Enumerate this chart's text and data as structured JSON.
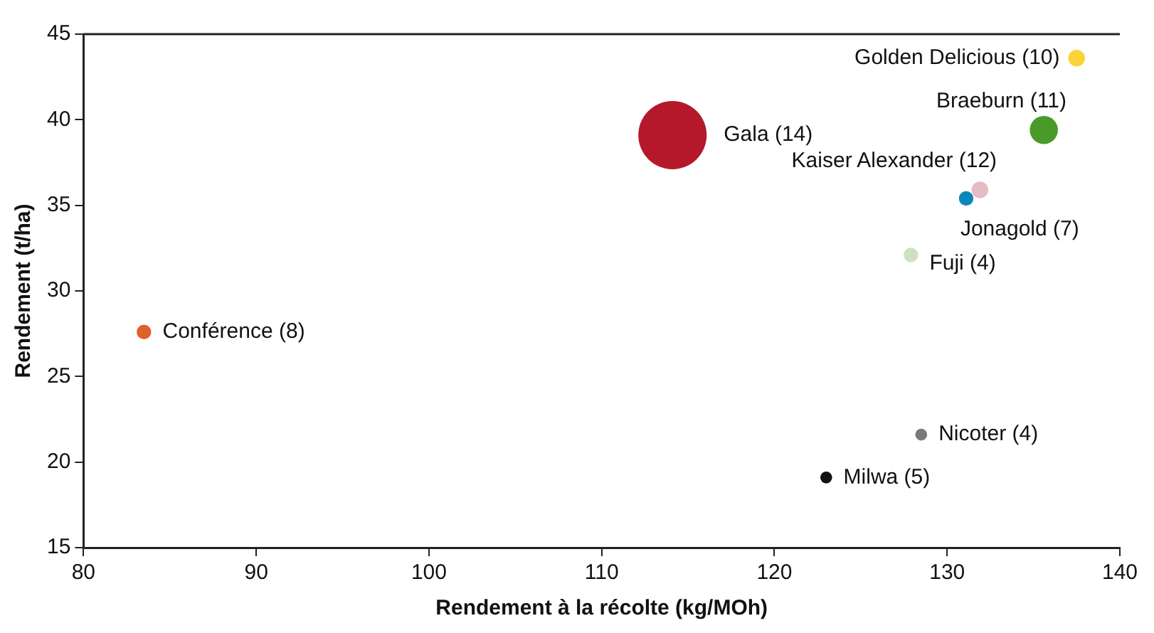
{
  "chart_data": {
    "type": "bubble",
    "xlabel": "Rendement à la récolte (kg/MOh)",
    "ylabel": "Rendement (t/ha)",
    "xlim": [
      80,
      140
    ],
    "xticks": [
      80,
      90,
      100,
      110,
      120,
      130,
      140
    ],
    "ylim": [
      15,
      45
    ],
    "yticks": [
      15,
      20,
      25,
      30,
      35,
      40,
      45
    ],
    "grid": false,
    "legend": false,
    "series": [
      {
        "name": "Golden Delicious (10)",
        "color": "#fdd33a",
        "x": [
          137.5
        ],
        "values": [
          43.6
        ],
        "sizes": [
          0.06
        ]
      },
      {
        "name": "Braeburn (11)",
        "color": "#4a9a2a",
        "x": [
          135.6
        ],
        "values": [
          39.4
        ],
        "sizes": [
          0.17
        ]
      },
      {
        "name": "Gala (14)",
        "color": "#b5182b",
        "x": [
          114.1
        ],
        "values": [
          39.1
        ],
        "sizes": [
          1
        ]
      },
      {
        "name": "Kaiser Alexander (12)",
        "color": "#e5bcc4",
        "x": [
          131.9
        ],
        "values": [
          35.9
        ],
        "sizes": [
          0.06
        ]
      },
      {
        "name": "Jonagold (7)",
        "color": "#0a86b8",
        "x": [
          131.1
        ],
        "values": [
          35.4
        ],
        "sizes": [
          0.045
        ]
      },
      {
        "name": "Fuji (4)",
        "color": "#cfe0bf",
        "x": [
          127.9
        ],
        "values": [
          32.1
        ],
        "sizes": [
          0.045
        ]
      },
      {
        "name": "Conférence (8)",
        "color": "#e0612a",
        "x": [
          83.5
        ],
        "values": [
          27.6
        ],
        "sizes": [
          0.045
        ]
      },
      {
        "name": "Nicoter (4)",
        "color": "#7a7a7a",
        "x": [
          128.5
        ],
        "values": [
          21.6
        ],
        "sizes": [
          0.03
        ]
      },
      {
        "name": "Milwa (5)",
        "color": "#111111",
        "x": [
          123.0
        ],
        "values": [
          19.1
        ],
        "sizes": [
          0.03
        ]
      }
    ]
  }
}
